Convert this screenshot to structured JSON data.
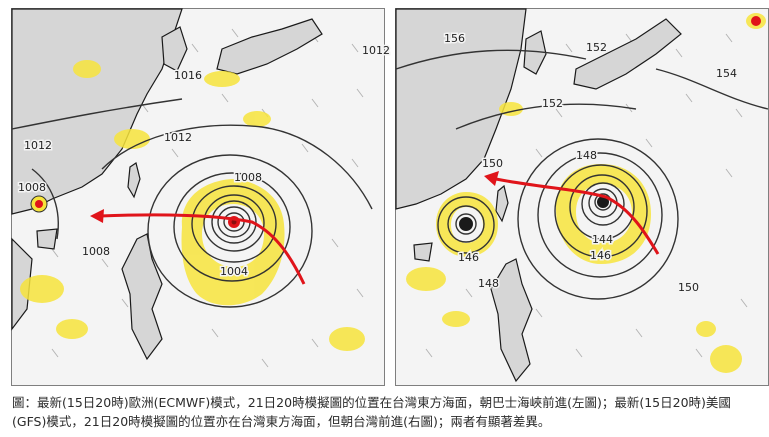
{
  "figure": {
    "caption": "圖：最新(15日20時)歐洲(ECMWF)模式，21日20時模擬圖的位置在台灣東方海面，朝巴士海峽前進(左圖)；最新(15日20時)美國(GFS)模式，21日20時模擬圖的位置亦在台灣東方海面，但朝台灣前進(右圖)；兩者有顯著差異。"
  },
  "left_map": {
    "model": "ECMWF",
    "isobar_labels": [
      "1012",
      "1016",
      "1012",
      "1012",
      "1008",
      "1008",
      "1008",
      "1004"
    ]
  },
  "right_map": {
    "model": "GFS",
    "isobar_labels": [
      "156",
      "152",
      "154",
      "152",
      "150",
      "148",
      "144",
      "146",
      "146",
      "148",
      "150"
    ]
  },
  "colors": {
    "track_arrow": "#e0141a",
    "precip_fill": "#f7e43c",
    "isobar": "#333333",
    "coast": "#1a1a1a",
    "land": "#d6d6d6",
    "ocean": "#f4f4f4"
  }
}
